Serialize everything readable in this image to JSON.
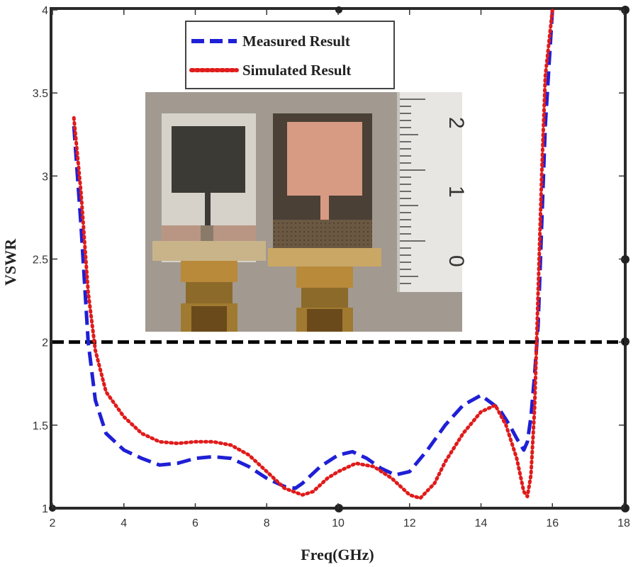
{
  "chart_data": {
    "type": "line",
    "title": "",
    "xlabel": "Freq(GHz)",
    "ylabel": "VSWR",
    "xlim": [
      2,
      18
    ],
    "ylim": [
      1,
      4
    ],
    "x_ticks": [
      "2",
      "4",
      "6",
      "8",
      "10",
      "12",
      "14",
      "16",
      "18"
    ],
    "y_ticks": [
      "1",
      "1.5",
      "2",
      "2.5",
      "3",
      "3.5",
      "4"
    ],
    "grid": false,
    "legend_position": "top-center",
    "reference_line": {
      "y": 2,
      "style": "dashed",
      "color": "#000000"
    },
    "series": [
      {
        "name": "Measured Result",
        "color": "#1f1fd6",
        "style": "dashed",
        "x": [
          2.6,
          2.8,
          3.0,
          3.2,
          3.5,
          4.0,
          4.5,
          5.0,
          5.5,
          6.0,
          6.5,
          7.0,
          7.5,
          8.0,
          8.5,
          8.8,
          9.0,
          9.5,
          10.0,
          10.4,
          10.8,
          11.2,
          11.6,
          12.0,
          12.5,
          13.0,
          13.5,
          14.0,
          14.5,
          14.8,
          15.0,
          15.2,
          15.3,
          15.4,
          15.5,
          15.6,
          15.7,
          15.8,
          16.0
        ],
        "y": [
          3.3,
          2.7,
          2.0,
          1.65,
          1.45,
          1.35,
          1.3,
          1.26,
          1.27,
          1.3,
          1.31,
          1.3,
          1.25,
          1.18,
          1.13,
          1.12,
          1.15,
          1.25,
          1.32,
          1.34,
          1.3,
          1.24,
          1.2,
          1.22,
          1.35,
          1.5,
          1.62,
          1.68,
          1.6,
          1.5,
          1.42,
          1.35,
          1.4,
          1.55,
          1.8,
          2.1,
          2.7,
          3.3,
          4.0
        ]
      },
      {
        "name": "Simulated Result",
        "color": "#e01b1b",
        "style": "dotted",
        "x": [
          2.6,
          2.8,
          3.0,
          3.2,
          3.5,
          4.0,
          4.5,
          5.0,
          5.5,
          6.0,
          6.5,
          7.0,
          7.5,
          8.0,
          8.5,
          9.0,
          9.3,
          9.7,
          10.0,
          10.5,
          11.0,
          11.5,
          12.0,
          12.3,
          12.7,
          13.0,
          13.5,
          14.0,
          14.4,
          14.7,
          15.0,
          15.2,
          15.3,
          15.4,
          15.5,
          15.6,
          15.7,
          15.8,
          16.0
        ],
        "y": [
          3.35,
          2.9,
          2.3,
          1.95,
          1.7,
          1.55,
          1.45,
          1.4,
          1.39,
          1.4,
          1.4,
          1.38,
          1.32,
          1.22,
          1.12,
          1.08,
          1.1,
          1.18,
          1.22,
          1.27,
          1.25,
          1.18,
          1.08,
          1.06,
          1.15,
          1.28,
          1.45,
          1.58,
          1.62,
          1.5,
          1.3,
          1.1,
          1.07,
          1.2,
          1.6,
          2.3,
          3.0,
          3.6,
          4.0
        ]
      }
    ]
  },
  "photo": {
    "ruler_labels": [
      "2",
      "1",
      "0"
    ]
  }
}
